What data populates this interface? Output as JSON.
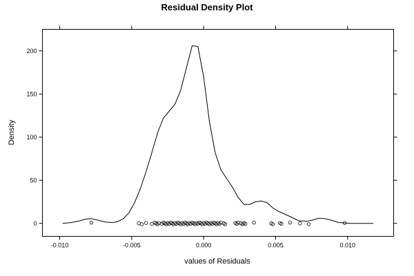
{
  "chart_data": {
    "type": "line",
    "title": "Residual Density Plot",
    "xlabel": "values of Residuals",
    "ylabel": "Density",
    "xlim": [
      -0.0112,
      0.0132
    ],
    "ylim": [
      -15,
      225
    ],
    "x_ticks": [
      {
        "value": -0.01,
        "label": "-0.010"
      },
      {
        "value": -0.005,
        "label": "-0.005"
      },
      {
        "value": 0.0,
        "label": "0.000"
      },
      {
        "value": 0.005,
        "label": "0.005"
      },
      {
        "value": 0.01,
        "label": "0.010"
      }
    ],
    "y_ticks": [
      {
        "value": 0,
        "label": "0"
      },
      {
        "value": 50,
        "label": "50"
      },
      {
        "value": 100,
        "label": "100"
      },
      {
        "value": 150,
        "label": "150"
      },
      {
        "value": 200,
        "label": "200"
      }
    ],
    "grid": false,
    "series": [
      {
        "x": [
          -0.0098,
          -0.0092,
          -0.0086,
          -0.0082,
          -0.0078,
          -0.0074,
          -0.0068,
          -0.0063,
          -0.006,
          -0.0056,
          -0.0052,
          -0.0048,
          -0.0044,
          -0.004,
          -0.0036,
          -0.0032,
          -0.0028,
          -0.0024,
          -0.002,
          -0.0016,
          -0.0012,
          -0.0008,
          -0.0004,
          0.0,
          0.0004,
          0.0008,
          0.0012,
          0.0016,
          0.002,
          0.0024,
          0.0028,
          0.0032,
          0.0036,
          0.004,
          0.0044,
          0.0048,
          0.0052,
          0.0056,
          0.006,
          0.0066,
          0.0072,
          0.0076,
          0.008,
          0.0084,
          0.0088,
          0.0094,
          0.0098,
          0.0102,
          0.0106,
          0.0112,
          0.0118
        ],
        "y": [
          0,
          1,
          3,
          5,
          5.5,
          4,
          1.5,
          1,
          2,
          5,
          12,
          24,
          40,
          60,
          82,
          105,
          122,
          130,
          138,
          154,
          180,
          206,
          205,
          170,
          118,
          82,
          62,
          52,
          42,
          30,
          22,
          22,
          25,
          26,
          24,
          18,
          14,
          11,
          8,
          3,
          2.5,
          4,
          6,
          5.5,
          4,
          1,
          0.5,
          0,
          0,
          0,
          0
        ]
      }
    ],
    "rug_points": [
      -0.0078,
      -0.0045,
      -0.0043,
      -0.004,
      -0.0036,
      -0.0034,
      -0.0033,
      -0.0032,
      -0.0031,
      -0.0029,
      -0.0028,
      -0.0027,
      -0.0026,
      -0.0025,
      -0.0024,
      -0.0023,
      -0.0022,
      -0.0021,
      -0.002,
      -0.0019,
      -0.0018,
      -0.0017,
      -0.0016,
      -0.0015,
      -0.0014,
      -0.0013,
      -0.0012,
      -0.0011,
      -0.001,
      -0.0009,
      -0.0008,
      -0.0007,
      -0.0006,
      -0.0005,
      -0.0004,
      -0.0003,
      -0.0002,
      -0.0001,
      0.0,
      0.0001,
      0.0002,
      0.0003,
      0.0004,
      0.0005,
      0.0006,
      0.0007,
      0.0008,
      0.0009,
      0.001,
      0.0011,
      0.0012,
      0.0014,
      0.0015,
      0.0022,
      0.0023,
      0.0024,
      0.0026,
      0.0027,
      0.0028,
      0.0029,
      0.0035,
      0.0047,
      0.0048,
      0.0053,
      0.0054,
      0.006,
      0.0067,
      0.0073,
      0.0098
    ]
  }
}
